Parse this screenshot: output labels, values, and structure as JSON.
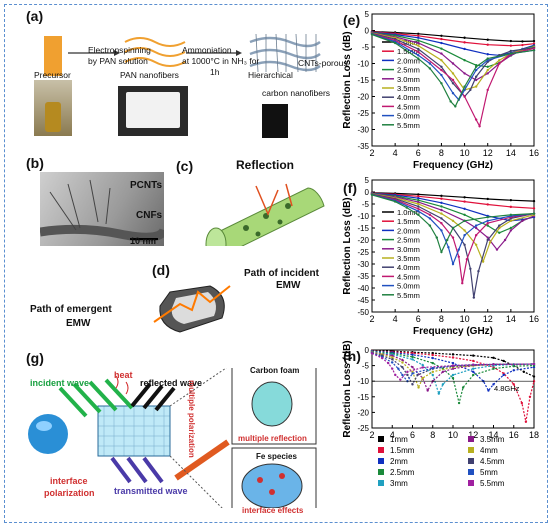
{
  "panels": {
    "a": {
      "label": "(a)",
      "step1": "Electronspinning",
      "step1b": "by PAN solution",
      "step2": "Ammoniation",
      "step2b": "at 1000°C in NH₃ for",
      "step2c": "1h",
      "precursor": "Precursor",
      "pan": "PAN nanofibers",
      "hier": "Hierarchical",
      "cnts": "CNTs-porous",
      "carbon": "carbon nanofibers"
    },
    "b": {
      "label": "(b)",
      "pcnts": "PCNTs",
      "cnfs": "CNFs",
      "scale": "10 nm"
    },
    "c": {
      "label": "(c)",
      "reflection": "Reflection"
    },
    "d": {
      "label": "(d)",
      "incident": "Path of incident",
      "incident2": "EMW",
      "emergent": "Path of emergent",
      "emergent2": "EMW"
    },
    "g": {
      "label": "(g)",
      "heat": "heat",
      "incident": "incident wave",
      "reflected": "reflected wave",
      "transmitted": "transmitted wave",
      "interface": "interface",
      "polarization": "polarization",
      "multiple_polarization": "multiple polarization",
      "carbon_foam": "Carbon foam",
      "multiple_reflection": "multiple reflection",
      "fe_species": "Fe species",
      "interface_effects": "interface effects"
    },
    "e": {
      "label": "(e)"
    },
    "f": {
      "label": "(f)"
    },
    "h": {
      "label": "(h)",
      "annotation": "4.8GHz"
    }
  },
  "chart_data": [
    {
      "type": "line",
      "panel": "(e)",
      "xlabel": "Frequency (GHz)",
      "ylabel": "Reflection Loss (dB)",
      "xlim": [
        2,
        16
      ],
      "ylim": [
        -35,
        5
      ],
      "xticks": [
        2,
        4,
        6,
        8,
        10,
        12,
        14,
        16
      ],
      "yticks": [
        -35,
        -30,
        -25,
        -20,
        -15,
        -10,
        -5,
        0,
        5
      ],
      "legend_position": "left",
      "series": [
        {
          "name": "1.0mm",
          "color": "#000000",
          "x": [
            2,
            4,
            6,
            8,
            10,
            12,
            14,
            15,
            16
          ],
          "y": [
            -0.3,
            -0.6,
            -1,
            -1.6,
            -2.2,
            -2.8,
            -3.2,
            -3.3,
            -3.2
          ]
        },
        {
          "name": "1.5mm",
          "color": "#e0103a",
          "x": [
            2,
            4,
            6,
            8,
            10,
            12,
            14,
            15,
            16
          ],
          "y": [
            -0.4,
            -0.9,
            -1.6,
            -2.6,
            -3.6,
            -4.3,
            -4.6,
            -4.4,
            -4
          ]
        },
        {
          "name": "2.0mm",
          "color": "#1030c0",
          "x": [
            2,
            4,
            6,
            8,
            10,
            12,
            13,
            14,
            15,
            16
          ],
          "y": [
            -0.5,
            -1.2,
            -2.2,
            -3.8,
            -5.6,
            -7.2,
            -7.5,
            -6.8,
            -5.6,
            -4.5
          ]
        },
        {
          "name": "2.5mm",
          "color": "#1a8a3a",
          "x": [
            2,
            4,
            6,
            8,
            10,
            11,
            12,
            13,
            14,
            15,
            16
          ],
          "y": [
            -0.6,
            -1.5,
            -3,
            -5.5,
            -9,
            -10.5,
            -11,
            -9.8,
            -7.6,
            -5.8,
            -4.8
          ]
        },
        {
          "name": "3.0mm",
          "color": "#8a1a8a",
          "x": [
            2,
            4,
            6,
            8,
            9,
            10,
            11,
            12,
            13,
            14,
            15,
            16
          ],
          "y": [
            -0.7,
            -1.9,
            -3.8,
            -7,
            -10,
            -13,
            -15,
            -13,
            -10,
            -7.5,
            -6,
            -5
          ]
        },
        {
          "name": "3.5mm",
          "color": "#b8b020",
          "x": [
            2,
            4,
            6,
            8,
            9,
            10,
            11,
            12,
            13,
            14,
            15,
            16
          ],
          "y": [
            -0.8,
            -2.2,
            -4.6,
            -9,
            -13,
            -18,
            -17,
            -12,
            -9,
            -7,
            -5.8,
            -5
          ]
        },
        {
          "name": "4.0mm",
          "color": "#404070",
          "x": [
            2,
            4,
            6,
            8,
            9,
            10,
            10.5,
            11,
            12,
            13,
            14,
            16
          ],
          "y": [
            -0.9,
            -2.6,
            -5.6,
            -11,
            -16,
            -20,
            -18,
            -14,
            -9.5,
            -7.5,
            -6.2,
            -5.2
          ]
        },
        {
          "name": "4.5mm",
          "color": "#c01870",
          "x": [
            2,
            4,
            6,
            8,
            9,
            10,
            11,
            11.3,
            12,
            13,
            14,
            16
          ],
          "y": [
            -1,
            -3,
            -6.5,
            -12,
            -15,
            -20,
            -27,
            -29,
            -18,
            -10,
            -7,
            -5.5
          ]
        },
        {
          "name": "5.0mm",
          "color": "#2050c0",
          "x": [
            2,
            4,
            6,
            7,
            8,
            9,
            9.5,
            10,
            11,
            12,
            14,
            16
          ],
          "y": [
            -1.1,
            -3.4,
            -7.5,
            -10,
            -13.5,
            -19,
            -21,
            -18,
            -12,
            -9,
            -7,
            -6
          ]
        },
        {
          "name": "5.5mm",
          "color": "#208040",
          "x": [
            2,
            4,
            6,
            7,
            8,
            8.8,
            9.2,
            10,
            11,
            12,
            14,
            16
          ],
          "y": [
            -1.2,
            -3.8,
            -8.5,
            -11.5,
            -16,
            -21.5,
            -23,
            -17,
            -11,
            -8.5,
            -7,
            -6
          ]
        }
      ]
    },
    {
      "type": "line",
      "panel": "(f)",
      "xlabel": "Frequency (GHz)",
      "ylabel": "Reflection Loss (dB)",
      "xlim": [
        2,
        16
      ],
      "ylim": [
        -50,
        5
      ],
      "xticks": [
        2,
        4,
        6,
        8,
        10,
        12,
        14,
        16
      ],
      "yticks": [
        -50,
        -45,
        -40,
        -35,
        -30,
        -25,
        -20,
        -15,
        -10,
        -5,
        0,
        5
      ],
      "legend_position": "left",
      "series": [
        {
          "name": "1.0mm",
          "color": "#000000",
          "x": [
            2,
            4,
            6,
            8,
            10,
            12,
            14,
            16
          ],
          "y": [
            -0.3,
            -0.6,
            -1,
            -1.6,
            -2.2,
            -2.9,
            -3.4,
            -3.8
          ]
        },
        {
          "name": "1.5mm",
          "color": "#e0103a",
          "x": [
            2,
            4,
            6,
            8,
            10,
            12,
            14,
            16
          ],
          "y": [
            -0.4,
            -1,
            -1.8,
            -2.8,
            -4,
            -5.2,
            -6.2,
            -6.8
          ]
        },
        {
          "name": "2.0mm",
          "color": "#1030c0",
          "x": [
            2,
            4,
            6,
            8,
            10,
            12,
            14,
            15,
            16
          ],
          "y": [
            -0.5,
            -1.3,
            -2.6,
            -4.5,
            -7,
            -10,
            -12,
            -11.5,
            -10.5
          ]
        },
        {
          "name": "2.5mm",
          "color": "#1a8a3a",
          "x": [
            2,
            4,
            6,
            8,
            10,
            12,
            13,
            14,
            15,
            16
          ],
          "y": [
            -0.6,
            -1.7,
            -3.4,
            -6,
            -9.5,
            -14,
            -17,
            -15,
            -12,
            -10
          ]
        },
        {
          "name": "3.0mm",
          "color": "#8a1a8a",
          "x": [
            2,
            4,
            6,
            8,
            10,
            11,
            12,
            12.8,
            13.5,
            14,
            15,
            16
          ],
          "y": [
            -0.7,
            -2,
            -4.2,
            -7.5,
            -12,
            -15,
            -19,
            -24,
            -20,
            -16,
            -12,
            -10
          ]
        },
        {
          "name": "3.5mm",
          "color": "#b8b020",
          "x": [
            2,
            4,
            6,
            8,
            9,
            10,
            11,
            11.6,
            12.2,
            13,
            14,
            16
          ],
          "y": [
            -0.8,
            -2.4,
            -5,
            -9,
            -12,
            -16,
            -22,
            -29,
            -21,
            -15,
            -12,
            -9.5
          ]
        },
        {
          "name": "4.0mm",
          "color": "#404070",
          "x": [
            2,
            4,
            6,
            8,
            9,
            10,
            10.5,
            10.8,
            11.2,
            12,
            13,
            14,
            16
          ],
          "y": [
            -0.9,
            -2.8,
            -6,
            -11,
            -15,
            -22,
            -32,
            -44,
            -33,
            -20,
            -14,
            -11,
            -9
          ]
        },
        {
          "name": "4.5mm",
          "color": "#c01870",
          "x": [
            2,
            4,
            6,
            7,
            8,
            9,
            9.5,
            9.8,
            10.2,
            11,
            12,
            14,
            16
          ],
          "y": [
            -1,
            -3.2,
            -7,
            -9.5,
            -13,
            -19,
            -27,
            -38,
            -28,
            -18,
            -13,
            -10.5,
            -9
          ]
        },
        {
          "name": "5.0mm",
          "color": "#2050c0",
          "x": [
            2,
            4,
            6,
            7,
            8,
            8.6,
            9,
            9.5,
            10,
            11,
            12,
            14,
            16
          ],
          "y": [
            -1.1,
            -3.6,
            -8,
            -11,
            -16,
            -23,
            -30,
            -24,
            -18,
            -14,
            -12,
            -10,
            -9
          ]
        },
        {
          "name": "5.5mm",
          "color": "#208040",
          "x": [
            2,
            4,
            5,
            6,
            7,
            7.6,
            8,
            8.5,
            9,
            10,
            12,
            14,
            16
          ],
          "y": [
            -1.2,
            -4,
            -6.5,
            -9.5,
            -14,
            -19,
            -25,
            -20,
            -15,
            -12,
            -10.5,
            -9.5,
            -9
          ]
        }
      ]
    },
    {
      "type": "line",
      "panel": "(h)",
      "xlabel": "",
      "ylabel": "Reflection Loss (dB)",
      "xlim": [
        2,
        18
      ],
      "ylim": [
        -25,
        0
      ],
      "xticks": [
        2,
        4,
        6,
        8,
        10,
        12,
        14,
        16,
        18
      ],
      "yticks": [
        -25,
        -20,
        -15,
        -10,
        -5,
        0
      ],
      "legend_position": "bottom",
      "series": [
        {
          "name": "1mm",
          "color": "#000000",
          "x": [
            2,
            4,
            6,
            8,
            10,
            12,
            14,
            15,
            16,
            17,
            18
          ],
          "y": [
            -0.2,
            -0.4,
            -0.7,
            -1,
            -1.4,
            -1.8,
            -2.5,
            -3.5,
            -5,
            -7,
            -8.5
          ]
        },
        {
          "name": "1.5mm",
          "color": "#e0103a",
          "x": [
            2,
            4,
            6,
            8,
            10,
            12,
            14,
            15,
            16,
            16.8,
            17.2,
            17.6,
            18
          ],
          "y": [
            -0.3,
            -0.6,
            -1,
            -1.6,
            -2.4,
            -3.5,
            -5.5,
            -7.5,
            -11,
            -17,
            -23,
            -15,
            -10
          ]
        },
        {
          "name": "2mm",
          "color": "#1030c0",
          "x": [
            2,
            4,
            6,
            8,
            10,
            12,
            13,
            13.5,
            14,
            15,
            16,
            18
          ],
          "y": [
            -0.4,
            -0.8,
            -1.5,
            -2.6,
            -4.2,
            -7,
            -10,
            -13,
            -11,
            -8,
            -6.5,
            -5.5
          ]
        },
        {
          "name": "2.5mm",
          "color": "#1a8a3a",
          "x": [
            2,
            4,
            6,
            8,
            9,
            10,
            10.6,
            11,
            12,
            14,
            16,
            18
          ],
          "y": [
            -0.5,
            -1.1,
            -2.2,
            -4.2,
            -6,
            -9,
            -17,
            -12,
            -8,
            -6,
            -5.2,
            -5
          ]
        },
        {
          "name": "3mm",
          "color": "#20a0c0",
          "x": [
            2,
            4,
            6,
            7,
            8,
            8.6,
            9,
            10,
            12,
            14,
            16,
            18
          ],
          "y": [
            -0.6,
            -1.4,
            -3,
            -4.8,
            -8,
            -14,
            -11,
            -8,
            -6,
            -5,
            -4.6,
            -4.5
          ]
        },
        {
          "name": "3.5mm",
          "color": "#8a1a8a",
          "x": [
            2,
            4,
            5,
            6,
            7,
            7.5,
            8,
            9,
            10,
            12,
            14,
            18
          ],
          "y": [
            -0.7,
            -1.8,
            -3.2,
            -5.5,
            -9,
            -13,
            -10,
            -7,
            -6,
            -5,
            -4.6,
            -4.5
          ]
        },
        {
          "name": "4mm",
          "color": "#b8b020",
          "x": [
            2,
            3,
            4,
            5,
            6,
            6.6,
            7,
            8,
            10,
            12,
            14,
            18
          ],
          "y": [
            -0.8,
            -1.4,
            -2.4,
            -4,
            -7,
            -12,
            -9,
            -7,
            -5.5,
            -5,
            -4.6,
            -4.5
          ]
        },
        {
          "name": "4.5mm",
          "color": "#404070",
          "x": [
            2,
            3,
            4,
            5,
            5.5,
            6,
            6.5,
            8,
            10,
            12,
            14,
            18
          ],
          "y": [
            -0.9,
            -1.8,
            -3,
            -5.5,
            -8,
            -11,
            -8,
            -6,
            -5.2,
            -4.8,
            -4.6,
            -4.5
          ]
        },
        {
          "name": "5mm",
          "color": "#2050c0",
          "x": [
            2,
            3,
            4,
            4.6,
            5,
            5.5,
            6,
            8,
            10,
            12,
            14,
            18
          ],
          "y": [
            -1,
            -2.2,
            -4,
            -6,
            -8,
            -10,
            -7.5,
            -5.8,
            -5,
            -4.7,
            -4.6,
            -4.5
          ]
        },
        {
          "name": "5.5mm",
          "color": "#a020a0",
          "x": [
            2,
            3,
            3.6,
            4,
            4.3,
            4.8,
            5.5,
            7,
            10,
            12,
            14,
            18
          ],
          "y": [
            -1.1,
            -2.6,
            -4.2,
            -6,
            -8,
            -9.5,
            -7,
            -5.6,
            -5,
            -4.7,
            -4.6,
            -4.5
          ]
        }
      ]
    }
  ]
}
